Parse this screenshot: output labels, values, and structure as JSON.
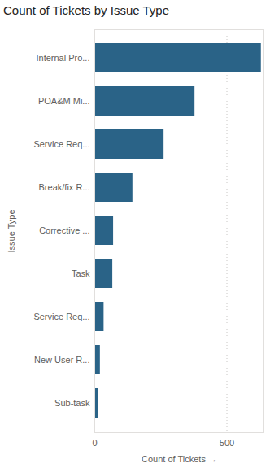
{
  "chart_data": {
    "type": "bar",
    "orientation": "horizontal",
    "title": "Count of Tickets by Issue Type",
    "x_label": "Count of Tickets",
    "y_label": "Issue Type",
    "categories": [
      "Internal Pro...",
      "POA&M Mi...",
      "Service Req...",
      "Break/fix R...",
      "Corrective ...",
      "Task",
      "Service Req...",
      "New User R...",
      "Sub-task"
    ],
    "values": [
      630,
      379,
      262,
      144,
      71,
      68,
      35,
      21,
      15
    ],
    "color": "#2a6387",
    "xlim": [
      0,
      640
    ],
    "xticks": [
      0,
      500
    ],
    "grid": true
  }
}
